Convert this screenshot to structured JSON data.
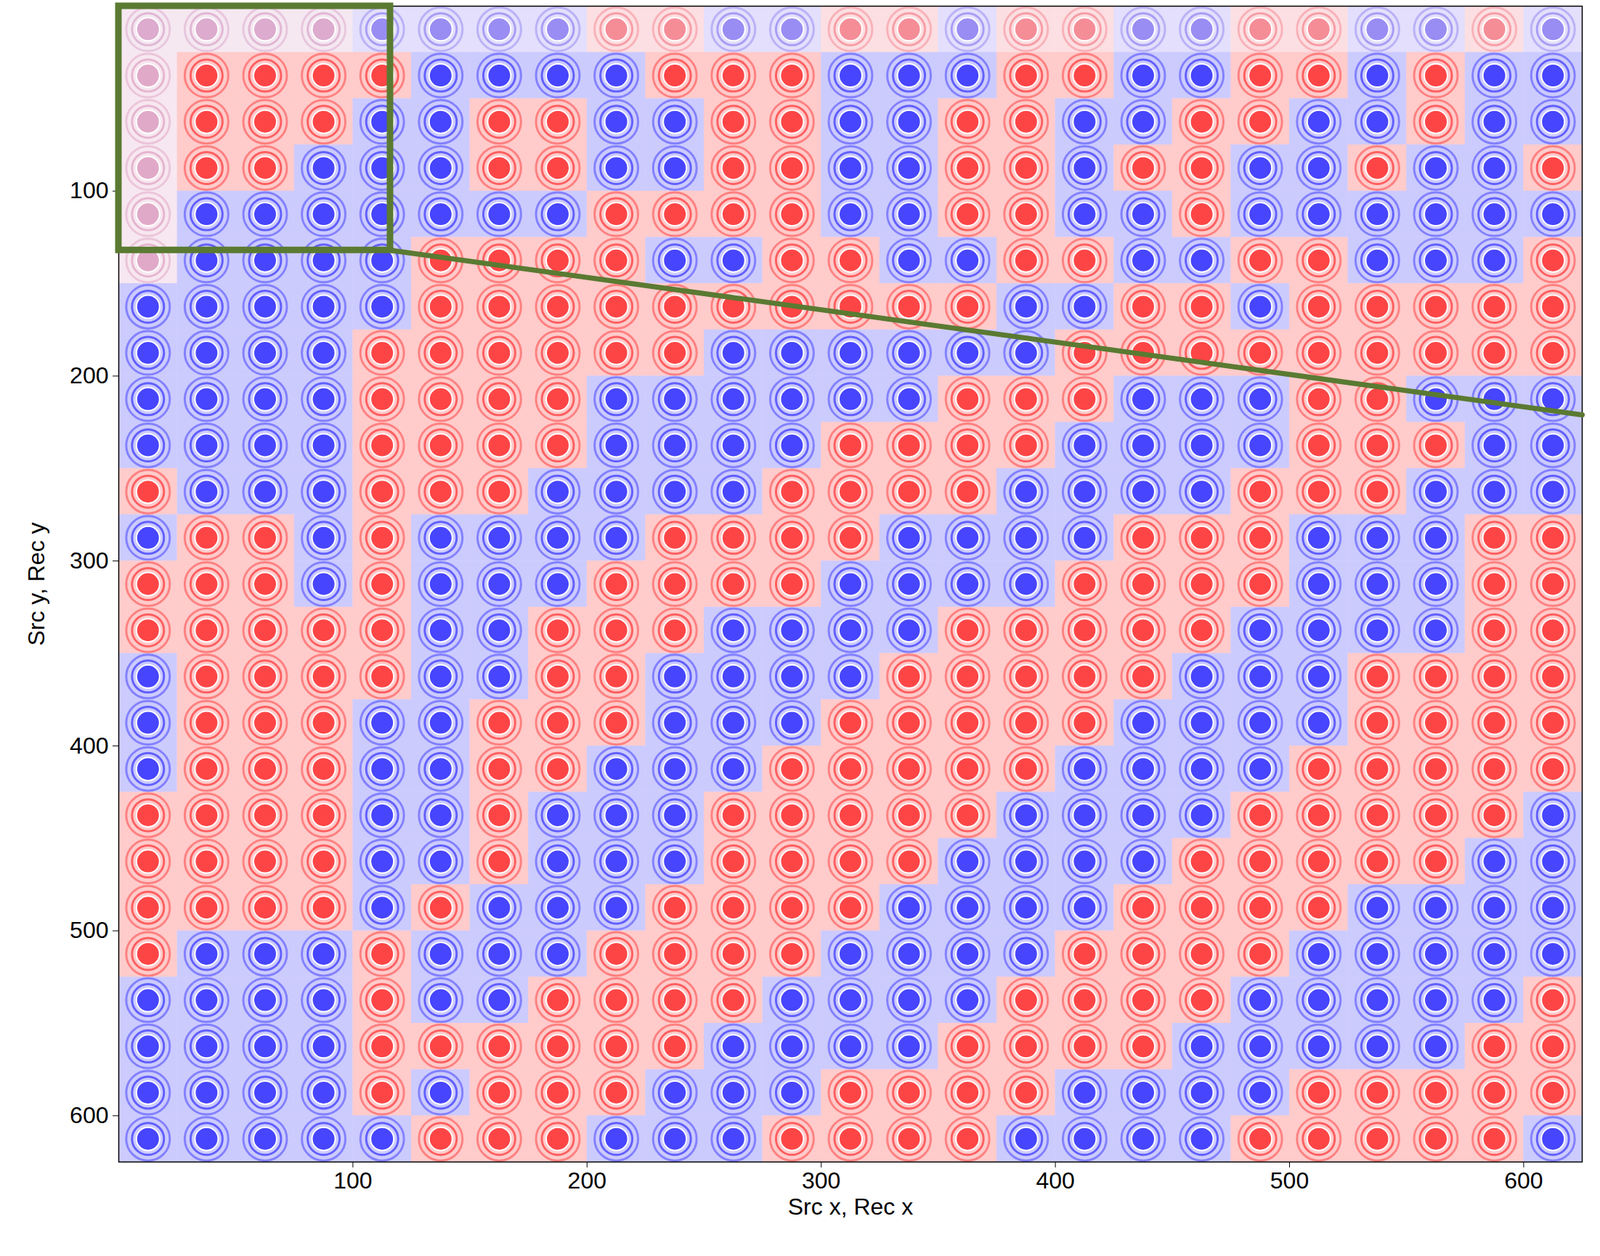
{
  "chart_data": {
    "type": "heatmap",
    "xlabel": "Src x, Rec x",
    "ylabel": "Src y, Rec y",
    "xlim": [
      0,
      625
    ],
    "ylim": [
      625,
      0
    ],
    "xticks": [
      100,
      200,
      300,
      400,
      500,
      600
    ],
    "yticks": [
      100,
      200,
      300,
      400,
      500,
      600
    ],
    "x_edges": [
      0,
      25,
      50,
      75,
      100,
      125,
      150,
      175,
      200,
      225,
      250,
      275,
      300,
      325,
      350,
      375,
      400,
      425,
      450,
      475,
      500,
      525,
      550,
      575,
      600,
      625
    ],
    "y_edges": [
      0,
      25,
      50,
      75,
      100,
      125,
      150,
      175,
      200,
      225,
      250,
      275,
      300,
      325,
      350,
      375,
      400,
      425,
      450,
      475,
      500,
      525,
      550,
      575,
      600,
      625
    ],
    "zlim": [
      -1,
      1
    ],
    "cells": [
      [
        0.05,
        0.05,
        0.05,
        0.05,
        -0.4,
        -0.4,
        -0.4,
        -0.4,
        0.4,
        0.4,
        -0.4,
        -0.4,
        0.4,
        0.4,
        -0.4,
        0.4,
        0.4,
        -0.4,
        -0.4,
        0.4,
        0.4,
        -0.4,
        -0.4,
        0.4,
        -0.4
      ],
      [
        0.1,
        0.8,
        0.8,
        0.8,
        0.8,
        -0.8,
        -0.8,
        -0.8,
        -0.8,
        0.8,
        0.8,
        0.8,
        -0.8,
        -0.8,
        -0.8,
        0.8,
        0.8,
        -0.8,
        -0.8,
        0.8,
        0.8,
        -0.8,
        0.8,
        -0.8,
        -0.8
      ],
      [
        0.1,
        0.8,
        0.8,
        0.8,
        -0.8,
        -0.8,
        0.8,
        0.8,
        -0.8,
        -0.8,
        0.8,
        0.8,
        -0.8,
        -0.8,
        0.8,
        0.8,
        -0.8,
        -0.8,
        0.8,
        0.8,
        -0.8,
        -0.8,
        0.8,
        -0.8,
        -0.8
      ],
      [
        0.1,
        0.8,
        0.8,
        -0.8,
        -0.8,
        -0.8,
        0.8,
        0.8,
        -0.8,
        -0.8,
        0.8,
        0.8,
        -0.8,
        -0.8,
        0.8,
        0.8,
        -0.8,
        0.8,
        0.8,
        -0.8,
        -0.8,
        0.8,
        -0.8,
        -0.8,
        0.8
      ],
      [
        0.1,
        -0.8,
        -0.8,
        -0.8,
        -0.8,
        -0.8,
        -0.8,
        -0.8,
        0.8,
        0.8,
        0.8,
        0.8,
        -0.8,
        -0.8,
        0.8,
        0.8,
        -0.8,
        -0.8,
        0.8,
        -0.8,
        -0.8,
        -0.8,
        -0.8,
        -0.8,
        -0.8
      ],
      [
        0.1,
        -0.8,
        -0.8,
        -0.8,
        -0.8,
        0.8,
        0.8,
        0.8,
        0.8,
        -0.8,
        -0.8,
        0.8,
        0.8,
        -0.8,
        -0.8,
        0.8,
        0.8,
        -0.8,
        -0.8,
        0.8,
        0.8,
        -0.8,
        -0.8,
        -0.8,
        0.8
      ],
      [
        -0.8,
        -0.8,
        -0.8,
        -0.8,
        -0.8,
        0.8,
        0.8,
        0.8,
        0.8,
        0.8,
        0.8,
        0.8,
        0.8,
        0.8,
        0.8,
        -0.8,
        -0.8,
        0.8,
        0.8,
        -0.8,
        0.8,
        0.8,
        0.8,
        0.8,
        0.8
      ],
      [
        -0.8,
        -0.8,
        -0.8,
        -0.8,
        0.8,
        0.8,
        0.8,
        0.8,
        0.8,
        0.8,
        -0.8,
        -0.8,
        -0.8,
        -0.8,
        -0.8,
        -0.8,
        0.8,
        0.8,
        0.8,
        0.8,
        0.8,
        0.8,
        0.8,
        0.8,
        0.8
      ],
      [
        -0.8,
        -0.8,
        -0.8,
        -0.8,
        0.8,
        0.8,
        0.8,
        0.8,
        -0.8,
        -0.8,
        -0.8,
        -0.8,
        -0.8,
        -0.8,
        0.8,
        0.8,
        0.8,
        -0.8,
        -0.8,
        -0.8,
        0.8,
        0.8,
        -0.8,
        -0.8,
        -0.8
      ],
      [
        -0.8,
        -0.8,
        -0.8,
        -0.8,
        0.8,
        0.8,
        0.8,
        0.8,
        -0.8,
        -0.8,
        -0.8,
        -0.8,
        0.8,
        0.8,
        0.8,
        0.8,
        -0.8,
        -0.8,
        -0.8,
        -0.8,
        0.8,
        0.8,
        0.8,
        -0.8,
        -0.8
      ],
      [
        0.8,
        -0.8,
        -0.8,
        -0.8,
        0.8,
        0.8,
        0.8,
        -0.8,
        -0.8,
        -0.8,
        -0.8,
        0.8,
        0.8,
        0.8,
        0.8,
        -0.8,
        -0.8,
        -0.8,
        -0.8,
        0.8,
        0.8,
        0.8,
        -0.8,
        -0.8,
        -0.8
      ],
      [
        -0.8,
        0.8,
        0.8,
        -0.8,
        0.8,
        -0.8,
        -0.8,
        -0.8,
        -0.8,
        0.8,
        0.8,
        0.8,
        0.8,
        -0.8,
        -0.8,
        -0.8,
        -0.8,
        0.8,
        0.8,
        0.8,
        -0.8,
        -0.8,
        -0.8,
        0.8,
        0.8
      ],
      [
        0.8,
        0.8,
        0.8,
        -0.8,
        0.8,
        -0.8,
        -0.8,
        -0.8,
        0.8,
        0.8,
        0.8,
        0.8,
        -0.8,
        -0.8,
        -0.8,
        -0.8,
        0.8,
        0.8,
        0.8,
        0.8,
        -0.8,
        -0.8,
        -0.8,
        0.8,
        0.8
      ],
      [
        0.8,
        0.8,
        0.8,
        0.8,
        0.8,
        -0.8,
        -0.8,
        0.8,
        0.8,
        0.8,
        -0.8,
        -0.8,
        -0.8,
        -0.8,
        0.8,
        0.8,
        0.8,
        0.8,
        0.8,
        -0.8,
        -0.8,
        -0.8,
        -0.8,
        0.8,
        0.8
      ],
      [
        -0.8,
        0.8,
        0.8,
        0.8,
        0.8,
        -0.8,
        -0.8,
        0.8,
        0.8,
        -0.8,
        -0.8,
        -0.8,
        -0.8,
        0.8,
        0.8,
        0.8,
        0.8,
        0.8,
        -0.8,
        -0.8,
        -0.8,
        0.8,
        0.8,
        0.8,
        0.8
      ],
      [
        -0.8,
        0.8,
        0.8,
        0.8,
        -0.8,
        -0.8,
        0.8,
        0.8,
        0.8,
        -0.8,
        -0.8,
        -0.8,
        0.8,
        0.8,
        0.8,
        0.8,
        0.8,
        -0.8,
        -0.8,
        -0.8,
        -0.8,
        0.8,
        0.8,
        0.8,
        0.8
      ],
      [
        -0.8,
        0.8,
        0.8,
        0.8,
        -0.8,
        -0.8,
        0.8,
        0.8,
        -0.8,
        -0.8,
        -0.8,
        0.8,
        0.8,
        0.8,
        0.8,
        0.8,
        -0.8,
        -0.8,
        -0.8,
        -0.8,
        0.8,
        0.8,
        0.8,
        0.8,
        0.8
      ],
      [
        0.8,
        0.8,
        0.8,
        0.8,
        -0.8,
        -0.8,
        0.8,
        -0.8,
        -0.8,
        -0.8,
        0.8,
        0.8,
        0.8,
        0.8,
        0.8,
        -0.8,
        -0.8,
        -0.8,
        -0.8,
        0.8,
        0.8,
        0.8,
        0.8,
        0.8,
        -0.8
      ],
      [
        0.8,
        0.8,
        0.8,
        0.8,
        -0.8,
        -0.8,
        0.8,
        -0.8,
        -0.8,
        -0.8,
        0.8,
        0.8,
        0.8,
        0.8,
        -0.8,
        -0.8,
        -0.8,
        -0.8,
        0.8,
        0.8,
        0.8,
        0.8,
        0.8,
        -0.8,
        -0.8
      ],
      [
        0.8,
        0.8,
        0.8,
        0.8,
        -0.8,
        0.8,
        -0.8,
        -0.8,
        -0.8,
        0.8,
        0.8,
        0.8,
        0.8,
        -0.8,
        -0.8,
        -0.8,
        -0.8,
        0.8,
        0.8,
        0.8,
        0.8,
        -0.8,
        -0.8,
        -0.8,
        -0.8
      ],
      [
        0.8,
        -0.8,
        -0.8,
        -0.8,
        0.8,
        -0.8,
        -0.8,
        -0.8,
        0.8,
        0.8,
        0.8,
        0.8,
        -0.8,
        -0.8,
        -0.8,
        -0.8,
        0.8,
        0.8,
        0.8,
        0.8,
        -0.8,
        -0.8,
        -0.8,
        -0.8,
        -0.8
      ],
      [
        -0.8,
        -0.8,
        -0.8,
        -0.8,
        0.8,
        -0.8,
        -0.8,
        0.8,
        0.8,
        0.8,
        0.8,
        -0.8,
        -0.8,
        -0.8,
        -0.8,
        0.8,
        0.8,
        0.8,
        0.8,
        -0.8,
        -0.8,
        -0.8,
        -0.8,
        -0.8,
        0.8
      ],
      [
        -0.8,
        -0.8,
        -0.8,
        -0.8,
        0.8,
        0.8,
        0.8,
        0.8,
        0.8,
        0.8,
        -0.8,
        -0.8,
        -0.8,
        -0.8,
        0.8,
        0.8,
        0.8,
        0.8,
        -0.8,
        -0.8,
        -0.8,
        -0.8,
        -0.8,
        0.8,
        0.8
      ],
      [
        -0.8,
        -0.8,
        -0.8,
        -0.8,
        0.8,
        -0.8,
        0.8,
        0.8,
        0.8,
        -0.8,
        -0.8,
        -0.8,
        0.8,
        0.8,
        0.8,
        0.8,
        -0.8,
        -0.8,
        -0.8,
        -0.8,
        0.8,
        0.8,
        0.8,
        0.8,
        0.8
      ],
      [
        -0.8,
        -0.8,
        -0.8,
        -0.8,
        -0.8,
        0.8,
        0.8,
        0.8,
        -0.8,
        -0.8,
        -0.8,
        0.8,
        0.8,
        0.8,
        0.8,
        -0.8,
        -0.8,
        -0.8,
        -0.8,
        0.8,
        0.8,
        0.8,
        0.8,
        0.8,
        -0.8
      ]
    ],
    "highlight": {
      "xlim": [
        0,
        116
      ],
      "ylim": [
        0,
        132
      ],
      "color": "#5a7a32",
      "connector": {
        "x": [
          116,
          625
        ],
        "y": [
          132,
          221
        ]
      }
    }
  }
}
